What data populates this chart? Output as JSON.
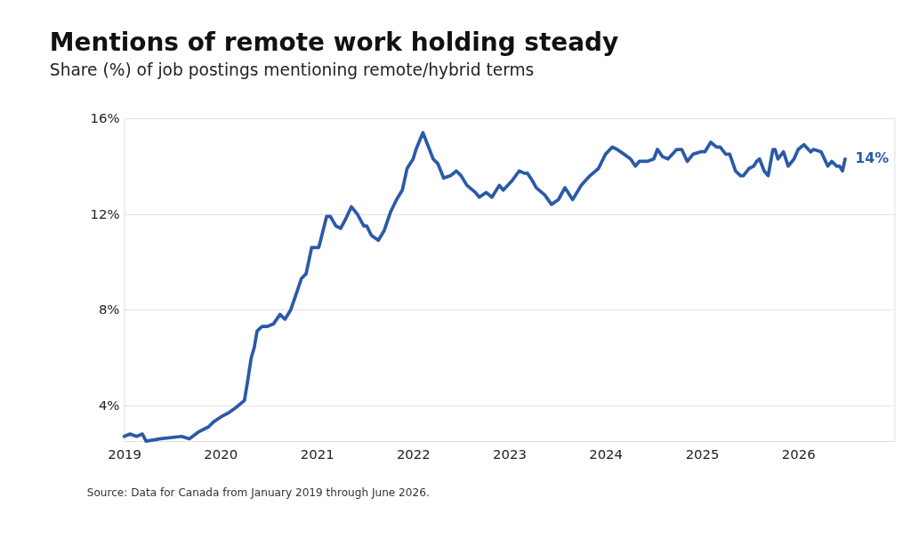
{
  "chart_data": {
    "type": "line",
    "title": "Mentions of remote work holding steady",
    "subtitle": "Share (%) of job postings mentioning remote/hybrid terms",
    "x": [
      "2019-01-01",
      "2019-01-23",
      "2019-02-17",
      "2019-03-11",
      "2019-03-25",
      "2019-05-19",
      "2019-08-07",
      "2019-09-05",
      "2019-10-12",
      "2019-11-17",
      "2019-12-05",
      "2020-01-01",
      "2020-02-03",
      "2020-02-28",
      "2020-04-01",
      "2020-04-13",
      "2020-04-27",
      "2020-05-08",
      "2020-05-19",
      "2020-06-07",
      "2020-06-28",
      "2020-07-20",
      "2020-08-14",
      "2020-09-02",
      "2020-09-24",
      "2020-10-19",
      "2020-11-03",
      "2020-11-21",
      "2020-12-12",
      "2021-01-08",
      "2021-01-15",
      "2021-02-07",
      "2021-02-21",
      "2021-03-14",
      "2021-04-01",
      "2021-04-16",
      "2021-05-12",
      "2021-06-03",
      "2021-06-28",
      "2021-07-09",
      "2021-07-27",
      "2021-08-22",
      "2021-09-13",
      "2021-10-08",
      "2021-10-30",
      "2021-11-21",
      "2021-12-09",
      "2022-01-01",
      "2022-01-12",
      "2022-02-07",
      "2022-02-25",
      "2022-03-18",
      "2022-04-05",
      "2022-04-27",
      "2022-05-23",
      "2022-06-14",
      "2022-07-02",
      "2022-07-24",
      "2022-08-25",
      "2022-09-09",
      "2022-10-05",
      "2022-10-27",
      "2022-11-24",
      "2022-12-09",
      "2023-01-12",
      "2023-02-07",
      "2023-02-28",
      "2023-03-11",
      "2023-03-29",
      "2023-04-13",
      "2023-05-15",
      "2023-06-10",
      "2023-07-06",
      "2023-07-31",
      "2023-08-29",
      "2023-10-01",
      "2023-11-03",
      "2023-12-05",
      "2024-01-01",
      "2024-01-27",
      "2024-02-14",
      "2024-03-11",
      "2024-04-05",
      "2024-04-23",
      "2024-05-08",
      "2024-06-07",
      "2024-07-02",
      "2024-07-16",
      "2024-08-04",
      "2024-08-25",
      "2024-09-27",
      "2024-10-16",
      "2024-11-06",
      "2024-11-28",
      "2024-12-27",
      "2025-01-12",
      "2025-02-03",
      "2025-02-25",
      "2025-03-11",
      "2025-04-01",
      "2025-04-16",
      "2025-05-08",
      "2025-05-27",
      "2025-06-07",
      "2025-06-28",
      "2025-07-16",
      "2025-07-27",
      "2025-08-07",
      "2025-08-25",
      "2025-09-09",
      "2025-09-27",
      "2025-10-05",
      "2025-10-16",
      "2025-11-06",
      "2025-11-24",
      "2025-12-16",
      "2026-01-01",
      "2026-01-23",
      "2026-02-17",
      "2026-02-28",
      "2026-03-29",
      "2026-04-23",
      "2026-05-08",
      "2026-05-27",
      "2026-06-07",
      "2026-06-18",
      "2026-06-28"
    ],
    "values": [
      2.7,
      2.8,
      2.7,
      2.8,
      2.5,
      2.6,
      2.7,
      2.6,
      2.9,
      3.1,
      3.3,
      3.5,
      3.7,
      3.9,
      4.2,
      5.0,
      6.0,
      6.4,
      7.1,
      7.3,
      7.3,
      7.4,
      7.8,
      7.6,
      8.0,
      8.8,
      9.3,
      9.5,
      10.6,
      10.6,
      10.9,
      11.9,
      11.9,
      11.5,
      11.4,
      11.7,
      12.3,
      12.0,
      11.5,
      11.5,
      11.1,
      10.9,
      11.3,
      12.1,
      12.6,
      13.0,
      13.9,
      14.3,
      14.7,
      15.4,
      14.9,
      14.3,
      14.1,
      13.5,
      13.6,
      13.8,
      13.6,
      13.2,
      12.9,
      12.7,
      12.9,
      12.7,
      13.2,
      13.0,
      13.4,
      13.8,
      13.7,
      13.7,
      13.4,
      13.1,
      12.8,
      12.4,
      12.6,
      13.1,
      12.6,
      13.2,
      13.6,
      13.9,
      14.5,
      14.8,
      14.7,
      14.5,
      14.3,
      14.0,
      14.2,
      14.2,
      14.3,
      14.7,
      14.4,
      14.3,
      14.7,
      14.7,
      14.2,
      14.5,
      14.6,
      14.6,
      15.0,
      14.8,
      14.8,
      14.5,
      14.5,
      13.8,
      13.6,
      13.6,
      13.9,
      14.0,
      14.2,
      14.3,
      13.8,
      13.6,
      14.7,
      14.7,
      14.3,
      14.6,
      14.0,
      14.3,
      14.7,
      14.9,
      14.6,
      14.7,
      14.6,
      14.0,
      14.2,
      14.0,
      14.0,
      13.8,
      14.3
    ],
    "color": "#2a5aa8",
    "xlim": [
      "2019-01-01",
      "2027-01-01"
    ],
    "xticks": [
      {
        "value": "2019-01-01",
        "label": "2019"
      },
      {
        "value": "2020-01-01",
        "label": "2020"
      },
      {
        "value": "2021-01-01",
        "label": "2021"
      },
      {
        "value": "2022-01-01",
        "label": "2022"
      },
      {
        "value": "2023-01-01",
        "label": "2023"
      },
      {
        "value": "2024-01-01",
        "label": "2024"
      },
      {
        "value": "2025-01-01",
        "label": "2025"
      },
      {
        "value": "2026-01-01",
        "label": "2026"
      }
    ],
    "ylim": [
      2.5,
      16
    ],
    "yticks": [
      {
        "value": 4,
        "label": "4%"
      },
      {
        "value": 8,
        "label": "8%"
      },
      {
        "value": 12,
        "label": "12%"
      },
      {
        "value": 16,
        "label": "16%"
      }
    ],
    "grid": "y",
    "marker": "none",
    "line_style": "solid",
    "annotations": [
      {
        "text": "14%",
        "x": "2026-06-28",
        "y": 14.3
      },
      "Source: Data for Canada from January 2019 through June 2026."
    ]
  }
}
